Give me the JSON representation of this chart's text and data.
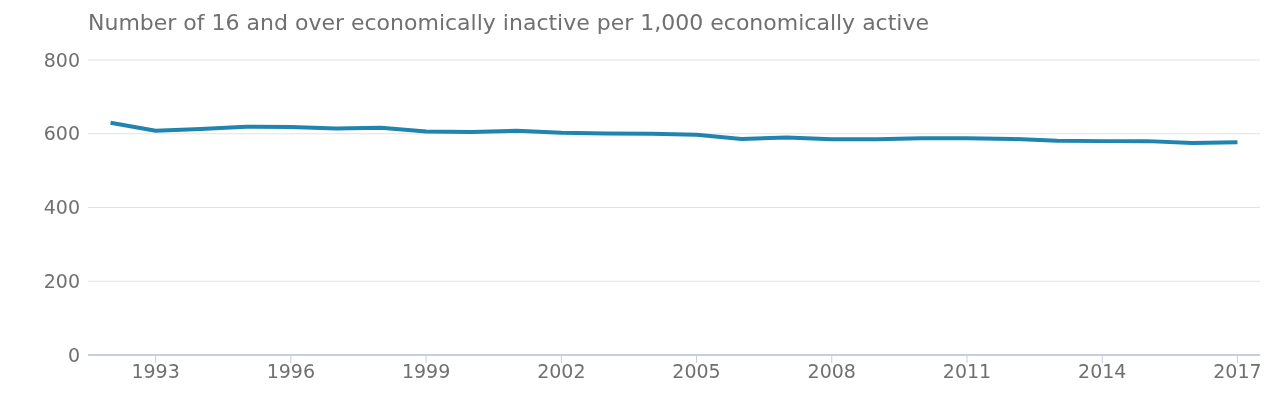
{
  "chart_data": {
    "type": "line",
    "title": "Number of 16 and over economically inactive per 1,000 economically active",
    "x": [
      1992,
      1993,
      1994,
      1995,
      1996,
      1997,
      1998,
      1999,
      2000,
      2001,
      2002,
      2003,
      2004,
      2005,
      2006,
      2007,
      2008,
      2009,
      2010,
      2011,
      2012,
      2013,
      2014,
      2015,
      2016,
      2017
    ],
    "series": [
      {
        "color": "#1f84ae",
        "values": [
          630,
          608,
          613,
          619,
          618,
          614,
          616,
          606,
          605,
          608,
          603,
          601,
          600,
          597,
          586,
          590,
          585,
          585,
          588,
          588,
          586,
          581,
          580,
          580,
          575,
          577
        ]
      }
    ],
    "xlim": [
      1991.5,
      2017.5
    ],
    "xticks": [
      1993,
      1996,
      1999,
      2002,
      2005,
      2008,
      2011,
      2014,
      2017
    ],
    "ylim": [
      0,
      800
    ],
    "yticks": [
      0,
      200,
      400,
      600,
      800
    ],
    "grid": "y",
    "legend": false,
    "marker": "none",
    "line_style": "solid"
  }
}
